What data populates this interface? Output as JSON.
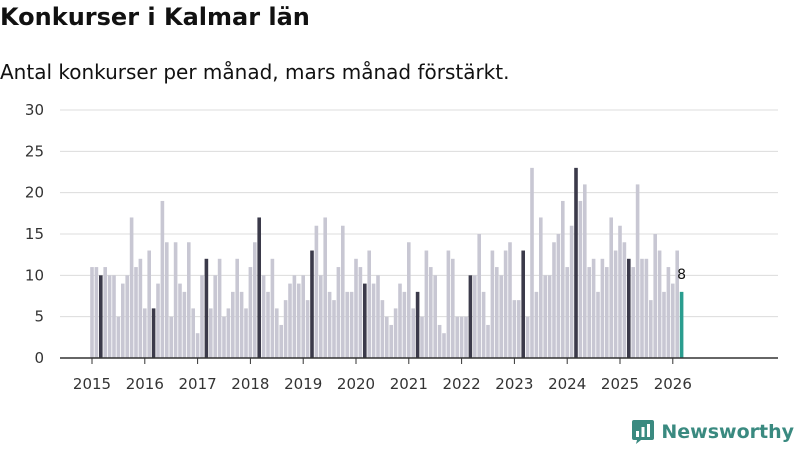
{
  "header": {
    "title": "Konkurser i Kalmar län",
    "subtitle": "Antal konkurser per månad, mars månad förstärkt."
  },
  "brand": {
    "name": "Newsworthy"
  },
  "colors": {
    "regular": "#c8c7d3",
    "march": "#3b3a4a",
    "latest": "#2a9d8f",
    "grid": "#dcdcdc",
    "axis": "#333333",
    "brand": "#3a8a80"
  },
  "chart_data": {
    "type": "bar",
    "title": "Konkurser i Kalmar län",
    "subtitle": "Antal konkurser per månad, mars månad förstärkt.",
    "xlabel": "",
    "ylabel": "",
    "ylim": [
      0,
      30
    ],
    "yticks": [
      0,
      5,
      10,
      15,
      20,
      25,
      30
    ],
    "start": "2015-01",
    "highlight_month": "mars",
    "x_tick_labels": [
      "2015",
      "2016",
      "2017",
      "2018",
      "2019",
      "2020",
      "2021",
      "2022",
      "2023",
      "2024",
      "2025",
      "2026"
    ],
    "values": [
      11,
      11,
      10,
      11,
      10,
      10,
      5,
      9,
      10,
      17,
      11,
      12,
      6,
      13,
      6,
      9,
      19,
      14,
      5,
      14,
      9,
      8,
      14,
      6,
      3,
      10,
      12,
      6,
      10,
      12,
      5,
      6,
      8,
      12,
      8,
      6,
      11,
      14,
      17,
      10,
      8,
      12,
      6,
      4,
      7,
      9,
      10,
      9,
      10,
      7,
      13,
      16,
      10,
      17,
      8,
      7,
      11,
      16,
      8,
      8,
      12,
      11,
      9,
      13,
      9,
      10,
      7,
      5,
      4,
      6,
      9,
      8,
      14,
      6,
      8,
      5,
      13,
      11,
      10,
      4,
      3,
      13,
      12,
      5,
      5,
      5,
      10,
      10,
      15,
      8,
      4,
      13,
      11,
      10,
      13,
      14,
      7,
      7,
      13,
      5,
      23,
      8,
      17,
      10,
      10,
      14,
      15,
      19,
      11,
      16,
      23,
      19,
      21,
      11,
      12,
      8,
      12,
      11,
      17,
      13,
      16,
      14,
      12,
      11,
      21,
      12,
      12,
      7,
      15,
      13,
      8,
      11,
      9,
      13,
      8
    ],
    "latest_label": "8"
  }
}
